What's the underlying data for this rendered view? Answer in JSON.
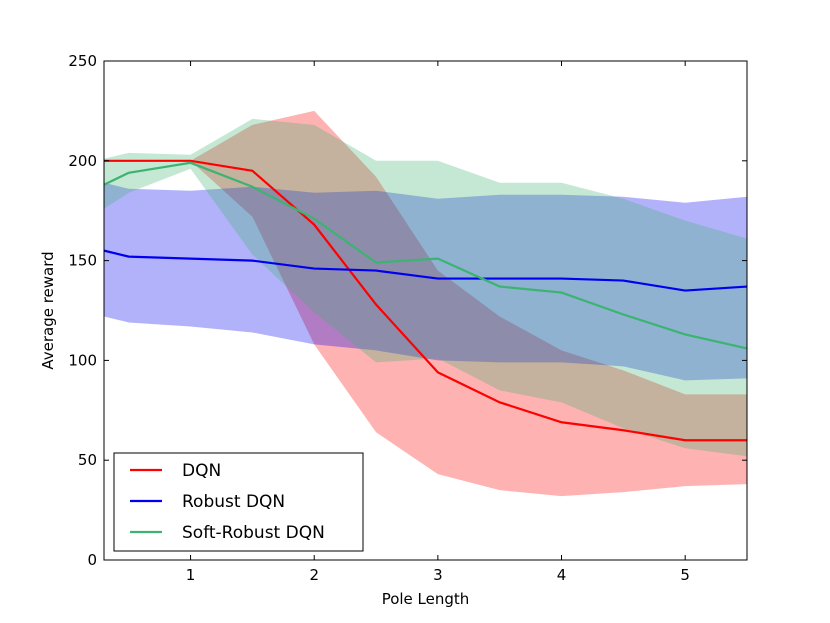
{
  "chart_data": {
    "type": "line",
    "title": "",
    "xlabel": "Pole Length",
    "ylabel": "Average reward",
    "xlim": [
      0.3,
      5.5
    ],
    "ylim": [
      0,
      250
    ],
    "xticks": [
      1,
      2,
      3,
      4,
      5
    ],
    "yticks": [
      0,
      50,
      100,
      150,
      200,
      250
    ],
    "legend_position": "lower-left",
    "series": [
      {
        "name": "DQN",
        "color": "#ff0000",
        "x": [
          0.3,
          0.5,
          1.0,
          1.5,
          2.0,
          2.5,
          3.0,
          3.5,
          4.0,
          4.5,
          5.0,
          5.5
        ],
        "values": [
          200,
          200,
          200,
          195,
          168,
          128,
          94,
          79,
          69,
          65,
          60,
          60
        ],
        "upper": [
          200,
          200,
          200,
          218,
          225,
          192,
          145,
          122,
          105,
          95,
          83,
          83
        ],
        "lower": [
          200,
          200,
          200,
          172,
          108,
          64,
          43,
          35,
          32,
          34,
          37,
          38
        ]
      },
      {
        "name": "Robust DQN",
        "color": "#0000ee",
        "x": [
          0.3,
          0.5,
          1.0,
          1.5,
          2.0,
          2.5,
          3.0,
          3.5,
          4.0,
          4.5,
          5.0,
          5.5
        ],
        "values": [
          155,
          152,
          151,
          150,
          146,
          145,
          141,
          141,
          141,
          140,
          135,
          137
        ],
        "upper": [
          189,
          186,
          185,
          187,
          184,
          185,
          181,
          183,
          183,
          182,
          179,
          182
        ],
        "lower": [
          122,
          119,
          117,
          114,
          108,
          105,
          100,
          99,
          99,
          97,
          90,
          91
        ]
      },
      {
        "name": "Soft-Robust DQN",
        "color": "#3cb371",
        "x": [
          0.3,
          0.5,
          1.0,
          1.5,
          2.0,
          2.5,
          3.0,
          3.5,
          4.0,
          4.5,
          5.0,
          5.5
        ],
        "values": [
          188,
          194,
          199,
          187,
          171,
          149,
          151,
          137,
          134,
          123,
          113,
          106
        ],
        "upper": [
          201,
          204,
          203,
          221,
          218,
          200,
          200,
          189,
          189,
          181,
          170,
          161
        ],
        "lower": [
          176,
          184,
          196,
          153,
          124,
          99,
          101,
          85,
          79,
          66,
          56,
          52
        ]
      }
    ]
  }
}
